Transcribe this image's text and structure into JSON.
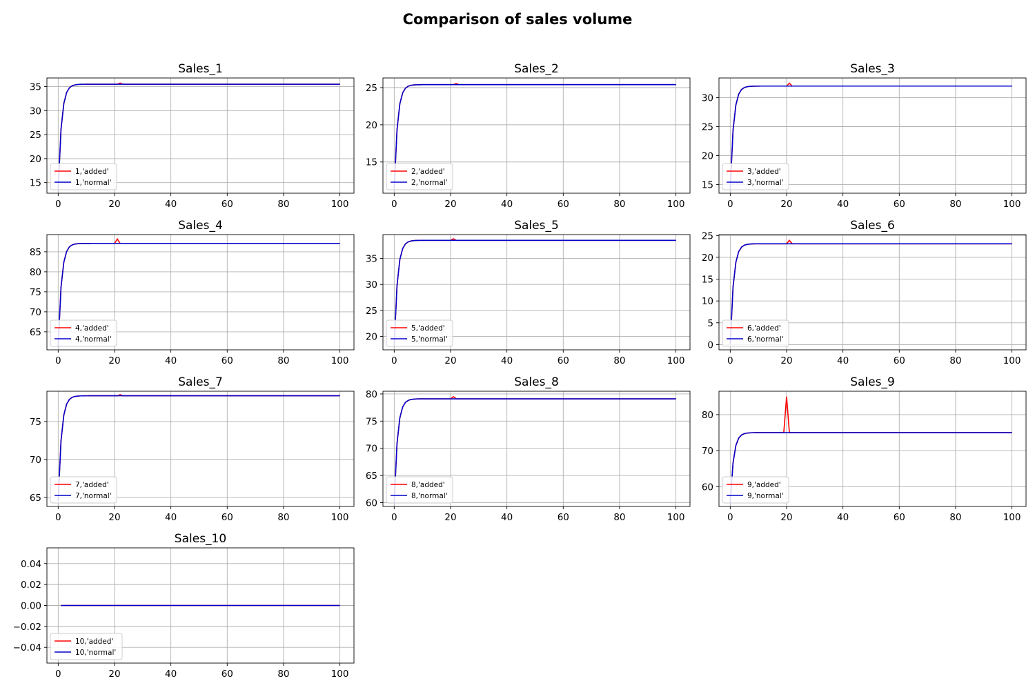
{
  "title": "Comparison of sales volume",
  "colors": {
    "added": "#ff0000",
    "normal": "#0000cc"
  },
  "chart_data": [
    {
      "type": "line",
      "title": "Sales_1",
      "xlim": [
        -4,
        105
      ],
      "ylim": [
        12.8,
        36.8
      ],
      "xticks": [
        0,
        20,
        40,
        60,
        80,
        100
      ],
      "yticks": [
        15,
        20,
        25,
        30,
        35
      ],
      "ytick_labels": [
        "15",
        "20",
        "25",
        "30",
        "35"
      ],
      "grid": true,
      "legend": "lower-left",
      "x_range": [
        0,
        100
      ],
      "start": 13.5,
      "steady": 35.5,
      "spike_x": 22,
      "spike": 35.75,
      "series": [
        {
          "name": "1,'added'",
          "color": "#ff0000"
        },
        {
          "name": "1,'normal'",
          "color": "#0000cc"
        }
      ]
    },
    {
      "type": "line",
      "title": "Sales_2",
      "xlim": [
        -4,
        105
      ],
      "ylim": [
        10.8,
        26.3
      ],
      "xticks": [
        0,
        20,
        40,
        60,
        80,
        100
      ],
      "yticks": [
        15,
        20,
        25
      ],
      "ytick_labels": [
        "15",
        "20",
        "25"
      ],
      "grid": true,
      "legend": "lower-left",
      "x_range": [
        0,
        100
      ],
      "start": 11.3,
      "steady": 25.4,
      "spike_x": 22,
      "spike": 25.55,
      "series": [
        {
          "name": "2,'added'",
          "color": "#ff0000"
        },
        {
          "name": "2,'normal'",
          "color": "#0000cc"
        }
      ]
    },
    {
      "type": "line",
      "title": "Sales_3",
      "xlim": [
        -4,
        105
      ],
      "ylim": [
        13.5,
        33.4
      ],
      "xticks": [
        0,
        20,
        40,
        60,
        80,
        100
      ],
      "yticks": [
        15,
        20,
        25,
        30
      ],
      "ytick_labels": [
        "15",
        "20",
        "25",
        "30"
      ],
      "grid": true,
      "legend": "lower-left",
      "x_range": [
        0,
        100
      ],
      "start": 14.2,
      "steady": 32.0,
      "spike_x": 21,
      "spike": 32.5,
      "series": [
        {
          "name": "3,'added'",
          "color": "#ff0000"
        },
        {
          "name": "3,'normal'",
          "color": "#0000cc"
        }
      ]
    },
    {
      "type": "line",
      "title": "Sales_4",
      "xlim": [
        -4,
        105
      ],
      "ylim": [
        60.5,
        89.3
      ],
      "xticks": [
        0,
        20,
        40,
        60,
        80,
        100
      ],
      "yticks": [
        65,
        70,
        75,
        80,
        85
      ],
      "ytick_labels": [
        "65",
        "70",
        "75",
        "80",
        "85"
      ],
      "grid": true,
      "legend": "lower-left",
      "x_range": [
        0,
        100
      ],
      "start": 61.4,
      "steady": 87.1,
      "spike_x": 21,
      "spike": 88.2,
      "series": [
        {
          "name": "4,'added'",
          "color": "#ff0000"
        },
        {
          "name": "4,'normal'",
          "color": "#0000cc"
        }
      ]
    },
    {
      "type": "line",
      "title": "Sales_5",
      "xlim": [
        -4,
        105
      ],
      "ylim": [
        17.4,
        39.6
      ],
      "xticks": [
        0,
        20,
        40,
        60,
        80,
        100
      ],
      "yticks": [
        20,
        25,
        30,
        35
      ],
      "ytick_labels": [
        "20",
        "25",
        "30",
        "35"
      ],
      "grid": true,
      "legend": "lower-left",
      "x_range": [
        0,
        100
      ],
      "start": 18.2,
      "steady": 38.5,
      "spike_x": 21,
      "spike": 38.8,
      "series": [
        {
          "name": "5,'added'",
          "color": "#ff0000"
        },
        {
          "name": "5,'normal'",
          "color": "#0000cc"
        }
      ]
    },
    {
      "type": "line",
      "title": "Sales_6",
      "xlim": [
        -4,
        105
      ],
      "ylim": [
        -1.2,
        25.2
      ],
      "xticks": [
        0,
        20,
        40,
        60,
        80,
        100
      ],
      "yticks": [
        0,
        5,
        10,
        15,
        20,
        25
      ],
      "ytick_labels": [
        "0",
        "5",
        "10",
        "15",
        "20",
        "25"
      ],
      "grid": true,
      "legend": "lower-left",
      "x_range": [
        0,
        100
      ],
      "start": 0.0,
      "steady": 23.1,
      "spike_x": 21,
      "spike": 23.9,
      "series": [
        {
          "name": "6,'added'",
          "color": "#ff0000"
        },
        {
          "name": "6,'normal'",
          "color": "#0000cc"
        }
      ]
    },
    {
      "type": "line",
      "title": "Sales_7",
      "xlim": [
        -4,
        105
      ],
      "ylim": [
        63.8,
        79.0
      ],
      "xticks": [
        0,
        20,
        40,
        60,
        80,
        100
      ],
      "yticks": [
        65,
        70,
        75
      ],
      "ytick_labels": [
        "65",
        "70",
        "75"
      ],
      "grid": true,
      "legend": "lower-left",
      "x_range": [
        0,
        100
      ],
      "start": 64.5,
      "steady": 78.4,
      "spike_x": 22,
      "spike": 78.55,
      "series": [
        {
          "name": "7,'added'",
          "color": "#ff0000"
        },
        {
          "name": "7,'normal'",
          "color": "#0000cc"
        }
      ]
    },
    {
      "type": "line",
      "title": "Sales_8",
      "xlim": [
        -4,
        105
      ],
      "ylim": [
        59.3,
        80.5
      ],
      "xticks": [
        0,
        20,
        40,
        60,
        80,
        100
      ],
      "yticks": [
        60,
        65,
        70,
        75,
        80
      ],
      "ytick_labels": [
        "60",
        "65",
        "70",
        "75",
        "80"
      ],
      "grid": true,
      "legend": "lower-left",
      "x_range": [
        0,
        100
      ],
      "start": 60.0,
      "steady": 79.1,
      "spike_x": 21,
      "spike": 79.5,
      "series": [
        {
          "name": "8,'added'",
          "color": "#ff0000"
        },
        {
          "name": "8,'normal'",
          "color": "#0000cc"
        }
      ]
    },
    {
      "type": "line",
      "title": "Sales_9",
      "xlim": [
        -4,
        105
      ],
      "ylim": [
        54.5,
        86.5
      ],
      "xticks": [
        0,
        20,
        40,
        60,
        80,
        100
      ],
      "yticks": [
        60,
        70,
        80
      ],
      "ytick_labels": [
        "60",
        "70",
        "80"
      ],
      "grid": true,
      "legend": "lower-left",
      "x_range": [
        0,
        100
      ],
      "start": 55.5,
      "steady": 75.0,
      "spike_x": 20,
      "spike": 85.0,
      "series": [
        {
          "name": "9,'added'",
          "color": "#ff0000"
        },
        {
          "name": "9,'normal'",
          "color": "#0000cc"
        }
      ]
    },
    {
      "type": "line",
      "title": "Sales_10",
      "xlim": [
        -4,
        105
      ],
      "ylim": [
        -0.055,
        0.055
      ],
      "xticks": [
        0,
        20,
        40,
        60,
        80,
        100
      ],
      "yticks": [
        -0.04,
        -0.02,
        0,
        0.02,
        0.04
      ],
      "ytick_labels": [
        "−0.04",
        "−0.02",
        "0.00",
        "0.02",
        "0.04"
      ],
      "grid": true,
      "legend": "lower-left",
      "x_range": [
        1,
        100
      ],
      "start": 0,
      "steady": 0,
      "spike_x": null,
      "spike": 0,
      "series": [
        {
          "name": "10,'added'",
          "color": "#ff0000"
        },
        {
          "name": "10,'normal'",
          "color": "#0000cc"
        }
      ]
    }
  ]
}
